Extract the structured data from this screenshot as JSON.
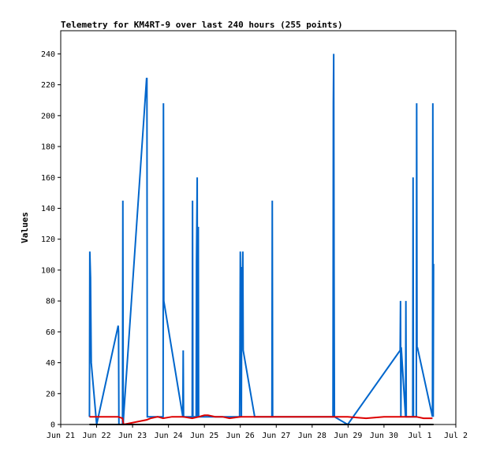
{
  "chart_data": {
    "type": "line",
    "title": "Telemetry for KM4RT-9 over last 240 hours (255 points)",
    "xlabel": "",
    "ylabel": "Values",
    "xlim": [
      "2024-06-21",
      "2024-07-02"
    ],
    "ylim": [
      0,
      255
    ],
    "y_ticks": [
      0,
      20,
      40,
      60,
      80,
      100,
      120,
      140,
      160,
      180,
      200,
      220,
      240
    ],
    "x_tick_labels": [
      "Jun 21",
      "Jun 22",
      "Jun 23",
      "Jun 24",
      "Jun 25",
      "Jun 26",
      "Jun 27",
      "Jun 28",
      "Jun 29",
      "Jun 30",
      "Jul 1",
      "Jul 2"
    ],
    "grid": false,
    "colors": {
      "series_1": "#0066cc",
      "series_2": "#dd0000",
      "series_3": "#000000"
    },
    "series": [
      {
        "color": "#0066cc",
        "x": [
          21.8,
          21.81,
          21.83,
          21.85,
          22.0,
          22.6,
          22.61,
          22.62,
          22.72,
          22.73,
          22.74,
          22.75,
          23.39,
          23.4,
          23.41,
          23.85,
          23.86,
          23.87,
          24.4,
          24.41,
          24.42,
          24.66,
          24.67,
          24.68,
          24.77,
          24.78,
          24.8,
          24.81,
          24.83,
          24.84,
          25.98,
          25.99,
          26.0,
          26.03,
          26.04,
          26.05,
          26.07,
          26.08,
          26.4,
          26.88,
          26.89,
          26.9,
          28.58,
          28.59,
          28.6,
          28.61,
          28.62,
          28.99,
          30.45,
          30.46,
          30.47,
          30.48,
          30.6,
          30.61,
          30.62,
          30.8,
          30.81,
          30.82,
          30.9,
          30.91,
          30.92,
          30.93,
          31.35,
          31.36,
          31.37,
          31.38
        ],
        "y": [
          5,
          112,
          95,
          40,
          0,
          64,
          60,
          0,
          0,
          145,
          0,
          5,
          224,
          224,
          5,
          5,
          208,
          80,
          5,
          48,
          5,
          5,
          145,
          5,
          5,
          105,
          160,
          5,
          128,
          5,
          5,
          48,
          112,
          5,
          102,
          82,
          112,
          48,
          5,
          5,
          145,
          5,
          5,
          208,
          240,
          100,
          5,
          0,
          48,
          80,
          5,
          50,
          5,
          80,
          5,
          5,
          160,
          5,
          5,
          208,
          48,
          50,
          5,
          208,
          5,
          104
        ]
      },
      {
        "color": "#dd0000",
        "x": [
          21.8,
          22.6,
          22.72,
          22.75,
          23.39,
          23.5,
          23.7,
          23.85,
          24.1,
          24.4,
          24.66,
          24.85,
          25.0,
          25.1,
          25.3,
          25.5,
          25.7,
          26.0,
          26.4,
          26.9,
          27.5,
          28.0,
          28.6,
          28.99,
          29.5,
          30.0,
          30.45,
          30.9,
          31.1,
          31.35
        ],
        "y": [
          5,
          5,
          4,
          0,
          3,
          4,
          5,
          4,
          5,
          5,
          4,
          5,
          6,
          6,
          5,
          5,
          4,
          5,
          5,
          5,
          5,
          5,
          5,
          5,
          4,
          5,
          5,
          5,
          4,
          4
        ]
      },
      {
        "color": "#000000",
        "x": [
          21.8,
          31.38
        ],
        "y": [
          0,
          0
        ]
      }
    ]
  }
}
